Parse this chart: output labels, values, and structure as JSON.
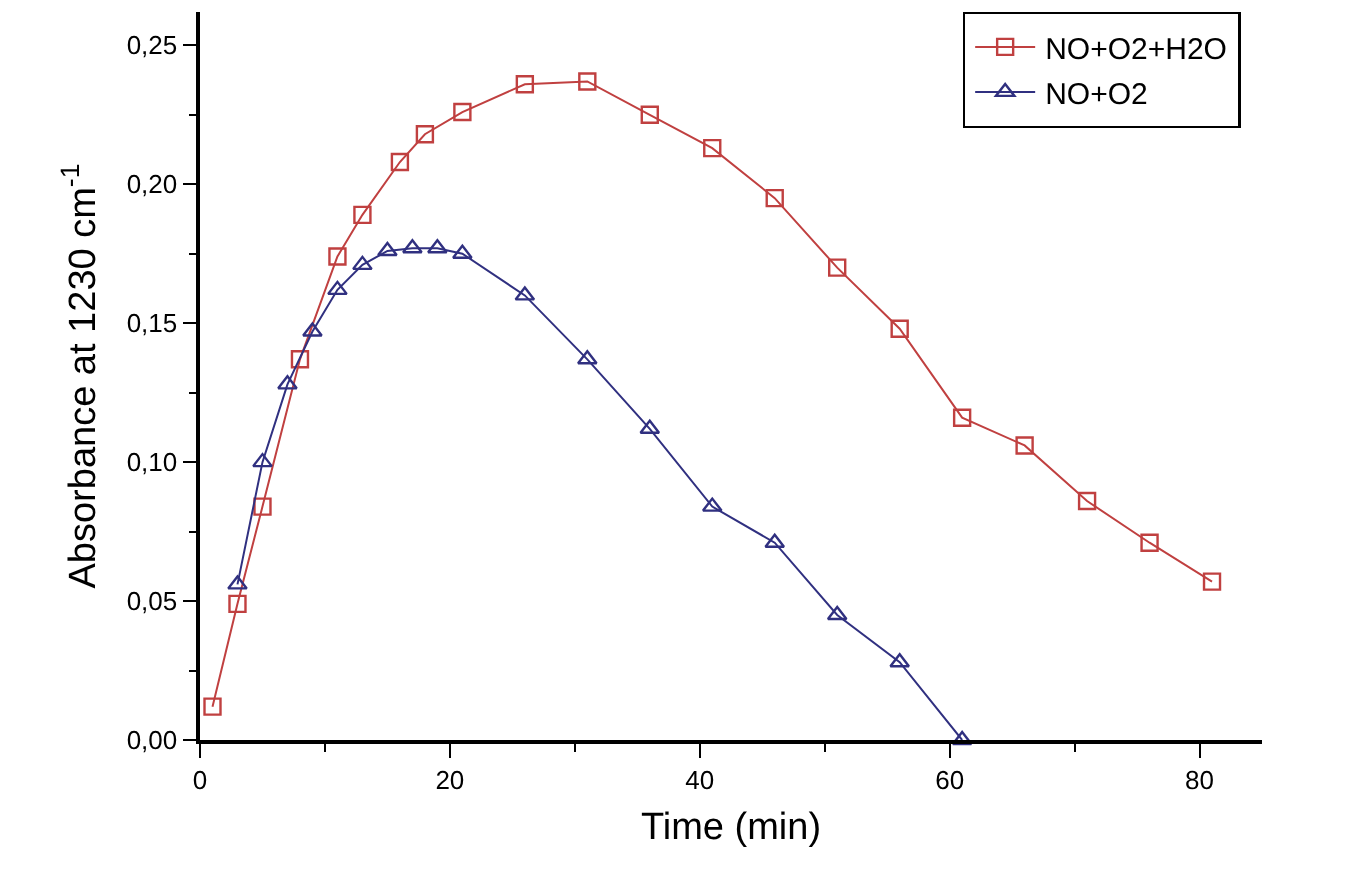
{
  "chart_data": {
    "type": "line",
    "xlabel": "Time (min)",
    "ylabel": "Absorbance at 1230 cm$^{-1}$",
    "series": [
      {
        "name": "NO+O2+H2O",
        "color": "#c04040",
        "marker": "square",
        "x": [
          1,
          3,
          5,
          8,
          11,
          13,
          16,
          18,
          21,
          26,
          31,
          36,
          41,
          46,
          51,
          56,
          61,
          66,
          71,
          76,
          81
        ],
        "values": [
          0.012,
          0.049,
          0.084,
          0.137,
          0.174,
          0.189,
          0.208,
          0.218,
          0.226,
          0.236,
          0.237,
          0.225,
          0.213,
          0.195,
          0.17,
          0.148,
          0.116,
          0.106,
          0.086,
          0.071,
          0.057
        ]
      },
      {
        "name": "NO+O2",
        "color": "#303080",
        "marker": "triangle",
        "x": [
          3,
          5,
          7,
          9,
          11,
          13,
          15,
          17,
          19,
          21,
          26,
          31,
          36,
          41,
          46,
          51,
          56,
          61
        ],
        "values": [
          0.056,
          0.1,
          0.128,
          0.147,
          0.162,
          0.171,
          0.176,
          0.177,
          0.177,
          0.175,
          0.16,
          0.137,
          0.112,
          0.084,
          0.071,
          0.045,
          0.028,
          0.0
        ]
      }
    ],
    "xlim": [
      0,
      85
    ],
    "xticks": [
      0,
      {
        "value": 10,
        "label": null
      },
      20,
      {
        "value": 30,
        "label": null
      },
      40,
      {
        "value": 50,
        "label": null
      },
      60,
      {
        "value": 70,
        "label": null
      },
      80
    ],
    "ylim": [
      0,
      0.262
    ],
    "yticks": [
      {
        "value": 0,
        "label": "0,00"
      },
      {
        "value": 0.025,
        "label": null
      },
      {
        "value": 0.05,
        "label": "0,05"
      },
      {
        "value": 0.075,
        "label": null
      },
      {
        "value": 0.1,
        "label": "0,10"
      },
      {
        "value": 0.125,
        "label": null
      },
      {
        "value": 0.15,
        "label": "0,15"
      },
      {
        "value": 0.175,
        "label": null
      },
      {
        "value": 0.2,
        "label": "0,20"
      },
      {
        "value": 0.225,
        "label": null
      },
      {
        "value": 0.25,
        "label": "0,25"
      }
    ],
    "grid": false,
    "legend": "top right",
    "line_style": "solid"
  }
}
